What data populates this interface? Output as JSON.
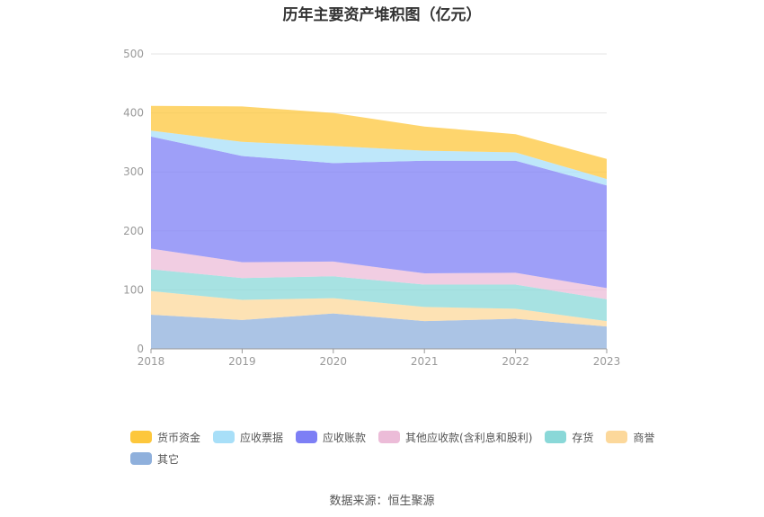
{
  "title": "历年主要资产堆积图（亿元）",
  "source": "数据来源：恒生聚源",
  "chart_data": {
    "type": "area",
    "stacked": true,
    "categories": [
      "2018",
      "2019",
      "2020",
      "2021",
      "2022",
      "2023"
    ],
    "ylim": [
      0,
      500
    ],
    "yticks": [
      0,
      100,
      200,
      300,
      400,
      500
    ],
    "grid": true,
    "legend_position": "bottom",
    "series": [
      {
        "name": "其它",
        "color": "#8fb0dc",
        "values": [
          58,
          49,
          60,
          47,
          51,
          38
        ]
      },
      {
        "name": "商誉",
        "color": "#fcd89b",
        "values": [
          40,
          34,
          26,
          24,
          17,
          9
        ]
      },
      {
        "name": "存货",
        "color": "#8ad8d8",
        "values": [
          37,
          37,
          37,
          38,
          41,
          37
        ]
      },
      {
        "name": "其他应收款(含利息和股利)",
        "color": "#ecbcd8",
        "values": [
          35,
          27,
          25,
          19,
          20,
          19
        ]
      },
      {
        "name": "应收账款",
        "color": "#7d7ff5",
        "values": [
          190,
          180,
          167,
          191,
          190,
          174
        ]
      },
      {
        "name": "应收票据",
        "color": "#a8dff8",
        "values": [
          10,
          24,
          29,
          17,
          14,
          11
        ]
      },
      {
        "name": "货币资金",
        "color": "#fdc73c",
        "values": [
          42,
          60,
          56,
          41,
          31,
          34
        ]
      }
    ],
    "legend_order": [
      "货币资金",
      "应收票据",
      "应收账款",
      "其他应收款(含利息和股利)",
      "存货",
      "商誉",
      "其它"
    ]
  }
}
